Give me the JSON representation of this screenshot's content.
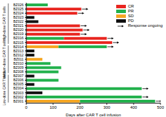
{
  "chart_data": {
    "type": "bar",
    "orientation": "horizontal",
    "stacked": true,
    "x_label": "Days after CAR T cell infusion",
    "xlim": [
      0,
      500
    ],
    "xticks": [
      0,
      100,
      200,
      300,
      400,
      500
    ],
    "responses": [
      {
        "name": "CR",
        "color": "#e8251f"
      },
      {
        "name": "PR",
        "color": "#22b14c"
      },
      {
        "name": "SD",
        "color": "#f5a623"
      },
      {
        "name": "PD",
        "color": "#111111"
      }
    ],
    "ongoing_label": "Response ongoing",
    "groups": [
      {
        "label": "High-dose CAR T cells",
        "patients": [
          "BZ026",
          "BZ025",
          "BZ024",
          "BZ023",
          "BZ022",
          "BZ021",
          "BZ020",
          "BZ019",
          "BZ016",
          "BZ015"
        ]
      },
      {
        "label": "Medium-dose CAR T cells",
        "patients": [
          "BZ014",
          "BZ013",
          "BZ012",
          "BZ011",
          "BZ010",
          "BZ009",
          "BZ008"
        ]
      },
      {
        "label": "Low-dose CAR T cells",
        "patients": [
          "BZ007",
          "BZ006",
          "BZ005",
          "BZ004",
          "BZ003",
          "BZ002",
          "BZ001"
        ]
      }
    ],
    "patients": [
      {
        "id": "BZ026",
        "segments": [
          {
            "response": "PR",
            "days": 80
          }
        ],
        "ongoing": false
      },
      {
        "id": "BZ025",
        "segments": [
          {
            "response": "CR",
            "days": 205
          }
        ],
        "ongoing": true
      },
      {
        "id": "BZ024",
        "segments": [
          {
            "response": "CR",
            "days": 190
          }
        ],
        "ongoing": true
      },
      {
        "id": "BZ023",
        "segments": [
          {
            "response": "PD",
            "days": 30
          }
        ],
        "ongoing": false
      },
      {
        "id": "BZ022",
        "segments": [
          {
            "response": "PD",
            "days": 45
          }
        ],
        "ongoing": false
      },
      {
        "id": "BZ021",
        "segments": [
          {
            "response": "CR",
            "days": 200
          }
        ],
        "ongoing": true
      },
      {
        "id": "BZ020",
        "segments": [
          {
            "response": "CR",
            "days": 210
          }
        ],
        "ongoing": true
      },
      {
        "id": "BZ019",
        "segments": [
          {
            "response": "CR",
            "days": 200
          }
        ],
        "ongoing": true
      },
      {
        "id": "BZ016",
        "segments": [
          {
            "response": "PR",
            "days": 140
          },
          {
            "response": "CR",
            "days": 160
          }
        ],
        "ongoing": true
      },
      {
        "id": "BZ015",
        "segments": [
          {
            "response": "CR",
            "days": 320
          }
        ],
        "ongoing": true
      },
      {
        "id": "BZ014",
        "segments": [
          {
            "response": "SD",
            "days": 120
          },
          {
            "response": "PR",
            "days": 180
          }
        ],
        "ongoing": true
      },
      {
        "id": "BZ013",
        "segments": [
          {
            "response": "PD",
            "days": 30
          }
        ],
        "ongoing": false
      },
      {
        "id": "BZ012",
        "segments": [
          {
            "response": "PD",
            "days": 30
          }
        ],
        "ongoing": false
      },
      {
        "id": "BZ011",
        "segments": [
          {
            "response": "SD",
            "days": 60
          }
        ],
        "ongoing": false
      },
      {
        "id": "BZ010",
        "segments": [
          {
            "response": "PR",
            "days": 90
          }
        ],
        "ongoing": false
      },
      {
        "id": "BZ009",
        "segments": [
          {
            "response": "PR",
            "days": 130
          }
        ],
        "ongoing": false
      },
      {
        "id": "BZ008",
        "segments": [
          {
            "response": "PR",
            "days": 120
          }
        ],
        "ongoing": false
      },
      {
        "id": "BZ007",
        "segments": [
          {
            "response": "PD",
            "days": 30
          }
        ],
        "ongoing": false
      },
      {
        "id": "BZ006",
        "segments": [
          {
            "response": "PR",
            "days": 120
          }
        ],
        "ongoing": false
      },
      {
        "id": "BZ005",
        "segments": [
          {
            "response": "PD",
            "days": 30
          }
        ],
        "ongoing": false
      },
      {
        "id": "BZ004",
        "segments": [
          {
            "response": "PR",
            "days": 430
          }
        ],
        "ongoing": true
      },
      {
        "id": "BZ003",
        "segments": [
          {
            "response": "PD",
            "days": 60
          }
        ],
        "ongoing": false
      },
      {
        "id": "BZ002",
        "segments": [
          {
            "response": "PR",
            "days": 430
          }
        ],
        "ongoing": true
      },
      {
        "id": "BZ001",
        "segments": [
          {
            "response": "SD",
            "days": 200
          },
          {
            "response": "PR",
            "days": 280
          }
        ],
        "ongoing": true
      }
    ]
  }
}
